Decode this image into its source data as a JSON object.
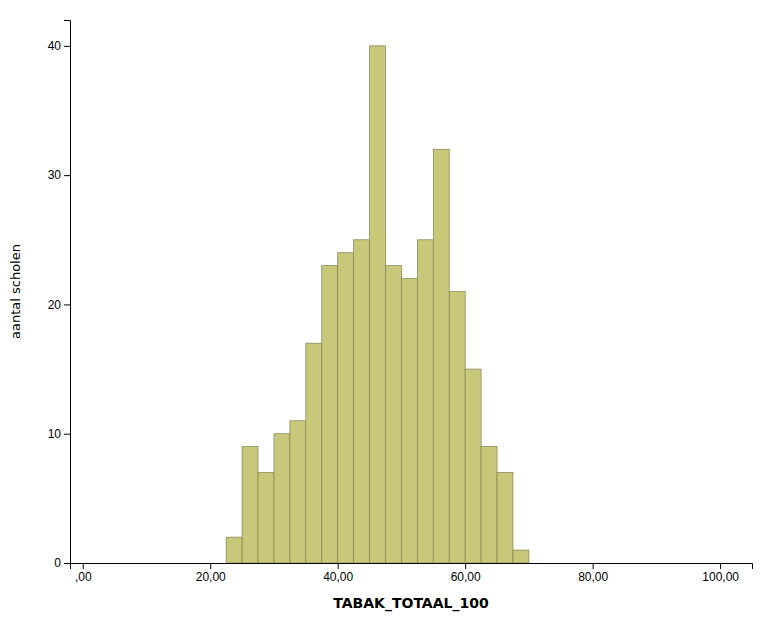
{
  "chart_data": {
    "type": "histogram",
    "xlabel": "TABAK_TOTAAL_100",
    "ylabel": "aantal scholen",
    "bins": [
      22.5,
      25.0,
      27.5,
      30.0,
      32.5,
      35.0,
      37.5,
      40.0,
      42.5,
      45.0,
      47.5,
      50.0,
      52.5,
      55.0,
      57.5,
      60.0,
      62.5,
      65.0,
      67.5,
      70.0
    ],
    "values": [
      2,
      9,
      7,
      10,
      11,
      17,
      23,
      24,
      25,
      40,
      23,
      22,
      25,
      32,
      21,
      15,
      9,
      7,
      1
    ],
    "color": "#c8c87a",
    "xlim": [
      -2,
      105
    ],
    "ylim": [
      0,
      42
    ],
    "xticks": [
      {
        "value": 0.0,
        "label": ",00"
      },
      {
        "value": 20.0,
        "label": "20,00"
      },
      {
        "value": 40.0,
        "label": "40,00"
      },
      {
        "value": 60.0,
        "label": "60,00"
      },
      {
        "value": 80.0,
        "label": "80,00"
      },
      {
        "value": 100.0,
        "label": "100,00"
      }
    ],
    "yticks": [
      0,
      10,
      20,
      30,
      40
    ],
    "grid": false
  }
}
